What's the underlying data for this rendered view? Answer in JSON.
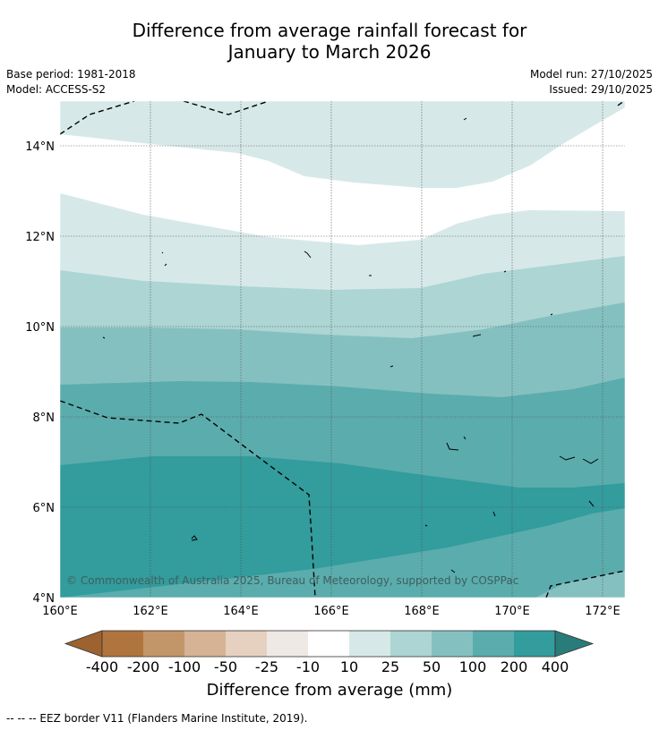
{
  "title": {
    "line1": "Difference from average rainfall forecast for",
    "line2": "January to March 2026"
  },
  "meta": {
    "base_period": "Base period: 1981-2018",
    "model": "Model: ACCESS-S2",
    "model_run": "Model run: 27/10/2025",
    "issued": "Issued: 29/10/2025"
  },
  "map": {
    "lon_ticks": [
      "160°E",
      "162°E",
      "164°E",
      "166°E",
      "168°E",
      "170°E",
      "172°E"
    ],
    "lat_ticks": [
      "14°N",
      "12°N",
      "10°N",
      "8°N",
      "6°N",
      "4°N"
    ],
    "copyright": "© Commonwealth of Australia 2025, Bureau of Meteorology, supported by COSPPac"
  },
  "colorbar": {
    "title": "Difference from average (mm)",
    "labels": [
      "-400",
      "-200",
      "-100",
      "-50",
      "-25",
      "-10",
      "10",
      "25",
      "50",
      "100",
      "200",
      "400"
    ],
    "colors": {
      "under": "#9c6230",
      "bins": [
        "#b0753e",
        "#c39669",
        "#d5b394",
        "#e6d0bf",
        "#efe9e5",
        "#ffffff",
        "#d6e9e8",
        "#acd5d4",
        "#85c0c0",
        "#5bacad",
        "#339c9c"
      ],
      "over": "#2a7c7a"
    }
  },
  "footer": {
    "legend": "--  --  -- EEZ border V11 (Flanders Marine Institute, 2019)."
  }
}
